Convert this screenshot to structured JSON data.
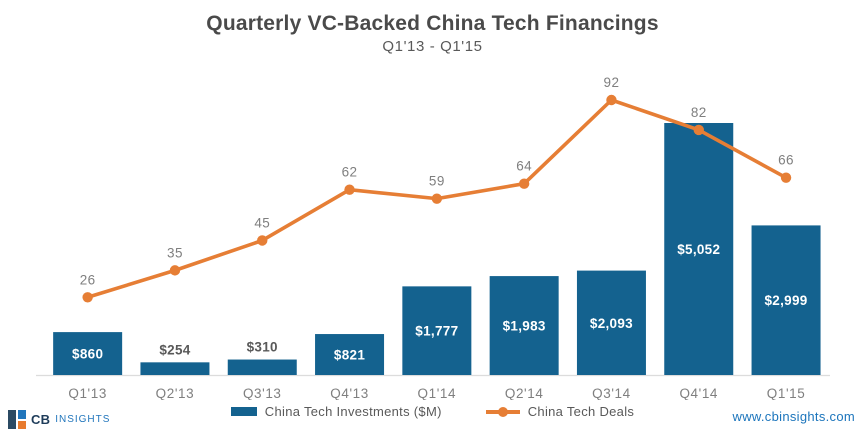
{
  "chart_data": {
    "type": "combo",
    "title": "Quarterly VC-Backed China Tech Financings",
    "subtitle": "Q1'13 - Q1'15",
    "categories": [
      "Q1'13",
      "Q2'13",
      "Q3'13",
      "Q4'13",
      "Q1'14",
      "Q2'14",
      "Q3'14",
      "Q4'14",
      "Q1'15"
    ],
    "series": [
      {
        "name": "China Tech Investments ($M)",
        "type": "bar",
        "values": [
          860,
          254,
          310,
          821,
          1777,
          1983,
          2093,
          5052,
          2999
        ],
        "labels": [
          "$860",
          "$254",
          "$310",
          "$821",
          "$1,777",
          "$1,983",
          "$2,093",
          "$5,052",
          "$2,999"
        ],
        "color": "#14628F"
      },
      {
        "name": "China Tech Deals",
        "type": "line",
        "values": [
          26,
          35,
          45,
          62,
          59,
          64,
          92,
          82,
          66
        ],
        "color": "#E67E35"
      }
    ],
    "bar_ylim": [
      0,
      5250
    ],
    "deals_ylim": [
      0,
      100
    ],
    "grid": false,
    "legend_position": "bottom",
    "x_axis_line": true
  },
  "colors": {
    "bar": "#14628F",
    "line": "#E67E35",
    "title": "#4A4A4A",
    "subtitle": "#595959",
    "muted_label": "#7F7F7F",
    "outside_bar_label": "#595959",
    "inside_bar_label": "#FFFFFF",
    "axis_line": "#DCDCDC",
    "link": "#1C75BC",
    "logo_navy": "#1E3C5A",
    "logo_blue": "#2176BC",
    "logo_orange": "#E87B2E"
  },
  "footer": {
    "logo_cb": "CB",
    "logo_insights": "INSIGHTS",
    "url": "www.cbinsights.com"
  }
}
